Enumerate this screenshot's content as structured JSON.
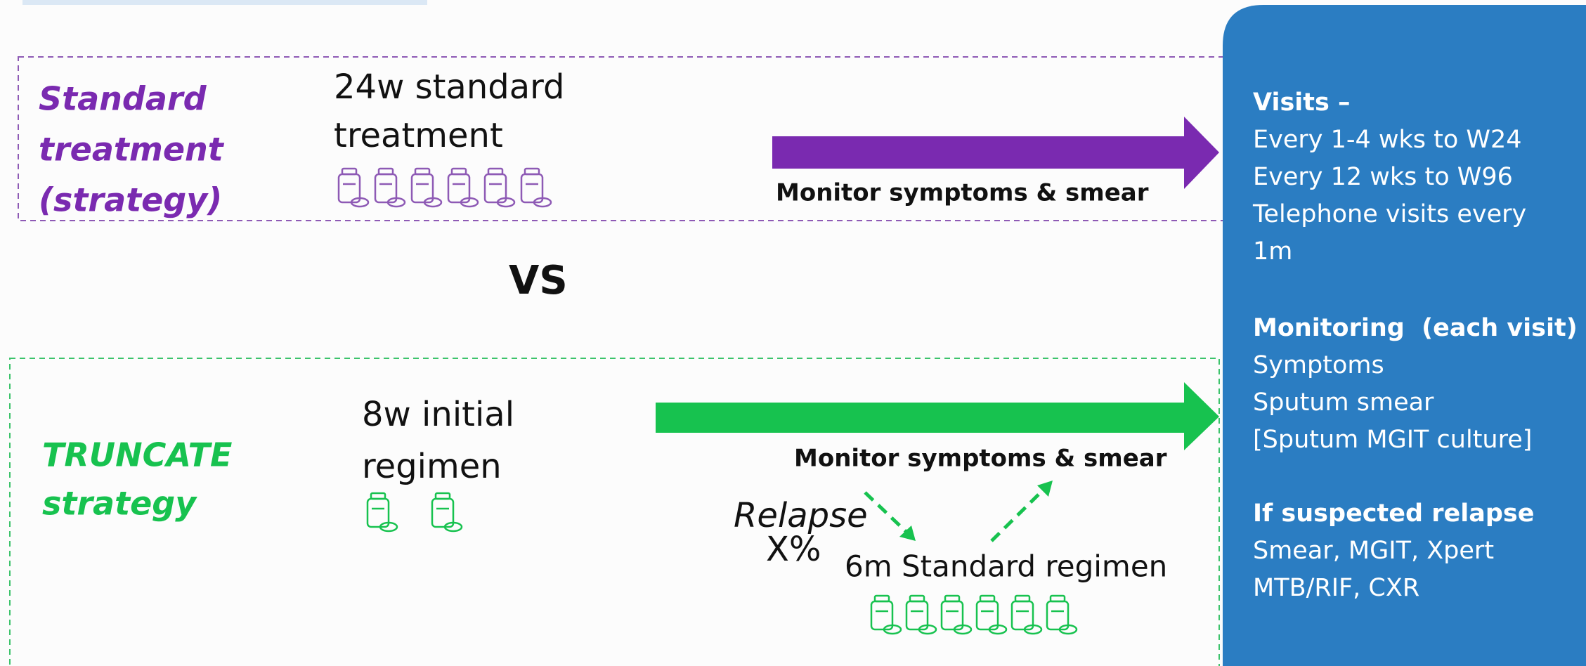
{
  "standard": {
    "label": [
      "Standard",
      "treatment",
      "(strategy)"
    ],
    "regimen": [
      "24w standard",
      "treatment"
    ],
    "monitor": "Monitor symptoms & smear"
  },
  "vs": "VS",
  "truncate": {
    "label": [
      "TRUNCATE",
      "strategy"
    ],
    "regimen": [
      "8w initial",
      "regimen"
    ],
    "monitor": "Monitor symptoms & smear",
    "relapse": [
      "Relapse",
      "X%"
    ],
    "retreatment": "6m Standard regimen"
  },
  "panel": {
    "sections": [
      {
        "heading": "Visits –",
        "lines": [
          "Every 1-4 wks to W24",
          "Every 12 wks to W96",
          "Telephone visits every",
          "1m"
        ]
      },
      {
        "heading": "Monitoring  (each visit)",
        "lines": [
          "Symptoms",
          "Sputum smear",
          "[Sputum MGIT culture]"
        ]
      },
      {
        "heading": "If suspected relapse",
        "lines": [
          "Smear, MGIT, Xpert",
          "MTB/RIF, CXR"
        ]
      }
    ]
  }
}
